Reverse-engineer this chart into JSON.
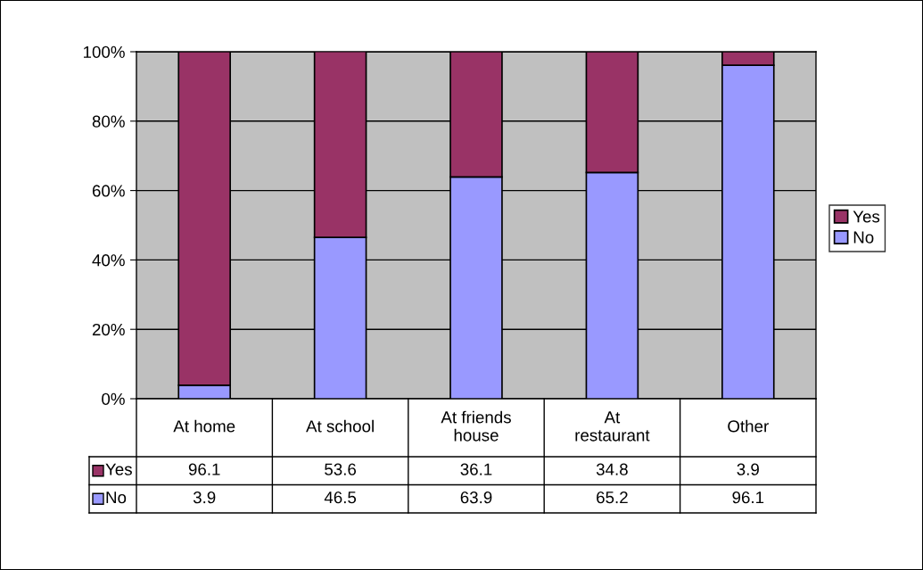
{
  "chart_data": {
    "type": "bar",
    "stacked": true,
    "categories": [
      "At home",
      "At school",
      "At friends house",
      "At restaurant",
      "Other"
    ],
    "series": [
      {
        "name": "No",
        "color": "#9999ff",
        "values": [
          3.9,
          46.5,
          63.9,
          65.2,
          96.1
        ]
      },
      {
        "name": "Yes",
        "color": "#993366",
        "values": [
          96.1,
          53.6,
          36.1,
          34.8,
          3.9
        ]
      }
    ],
    "ylim": [
      0,
      100
    ],
    "yticks": [
      {
        "value": 0,
        "label": "0%"
      },
      {
        "value": 20,
        "label": "20%"
      },
      {
        "value": 40,
        "label": "40%"
      },
      {
        "value": 60,
        "label": "60%"
      },
      {
        "value": 80,
        "label": "80%"
      },
      {
        "value": 100,
        "label": "100%"
      }
    ],
    "grid": "y",
    "legend": "right",
    "data_labels": true
  }
}
